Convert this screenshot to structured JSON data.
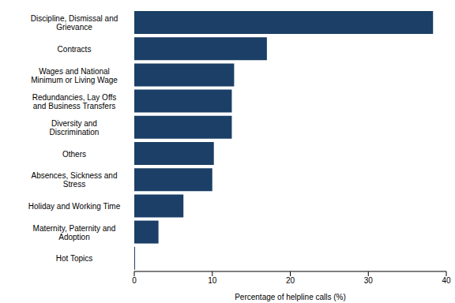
{
  "chart_data": {
    "type": "bar",
    "orientation": "horizontal",
    "categories": [
      "Discipline, Dismissal and Grievance",
      "Contracts",
      "Wages and National Minimum or Living Wage",
      "Redundancies, Lay Offs and Business Transfers",
      "Diversity and Discrimination",
      "Others",
      "Absences, Sickness and Stress",
      "Holiday and Working Time",
      "Maternity, Paternity and Adoption",
      "Hot Topics"
    ],
    "values": [
      38.3,
      17,
      12.8,
      12.5,
      12.5,
      10.2,
      10,
      6.3,
      3.1,
      0.1
    ],
    "color": "#1b3f66",
    "xlabel": "Percentage of helpline calls (%)",
    "xlim": [
      0,
      40
    ],
    "xticks": [
      0,
      10,
      20,
      30,
      40
    ]
  }
}
